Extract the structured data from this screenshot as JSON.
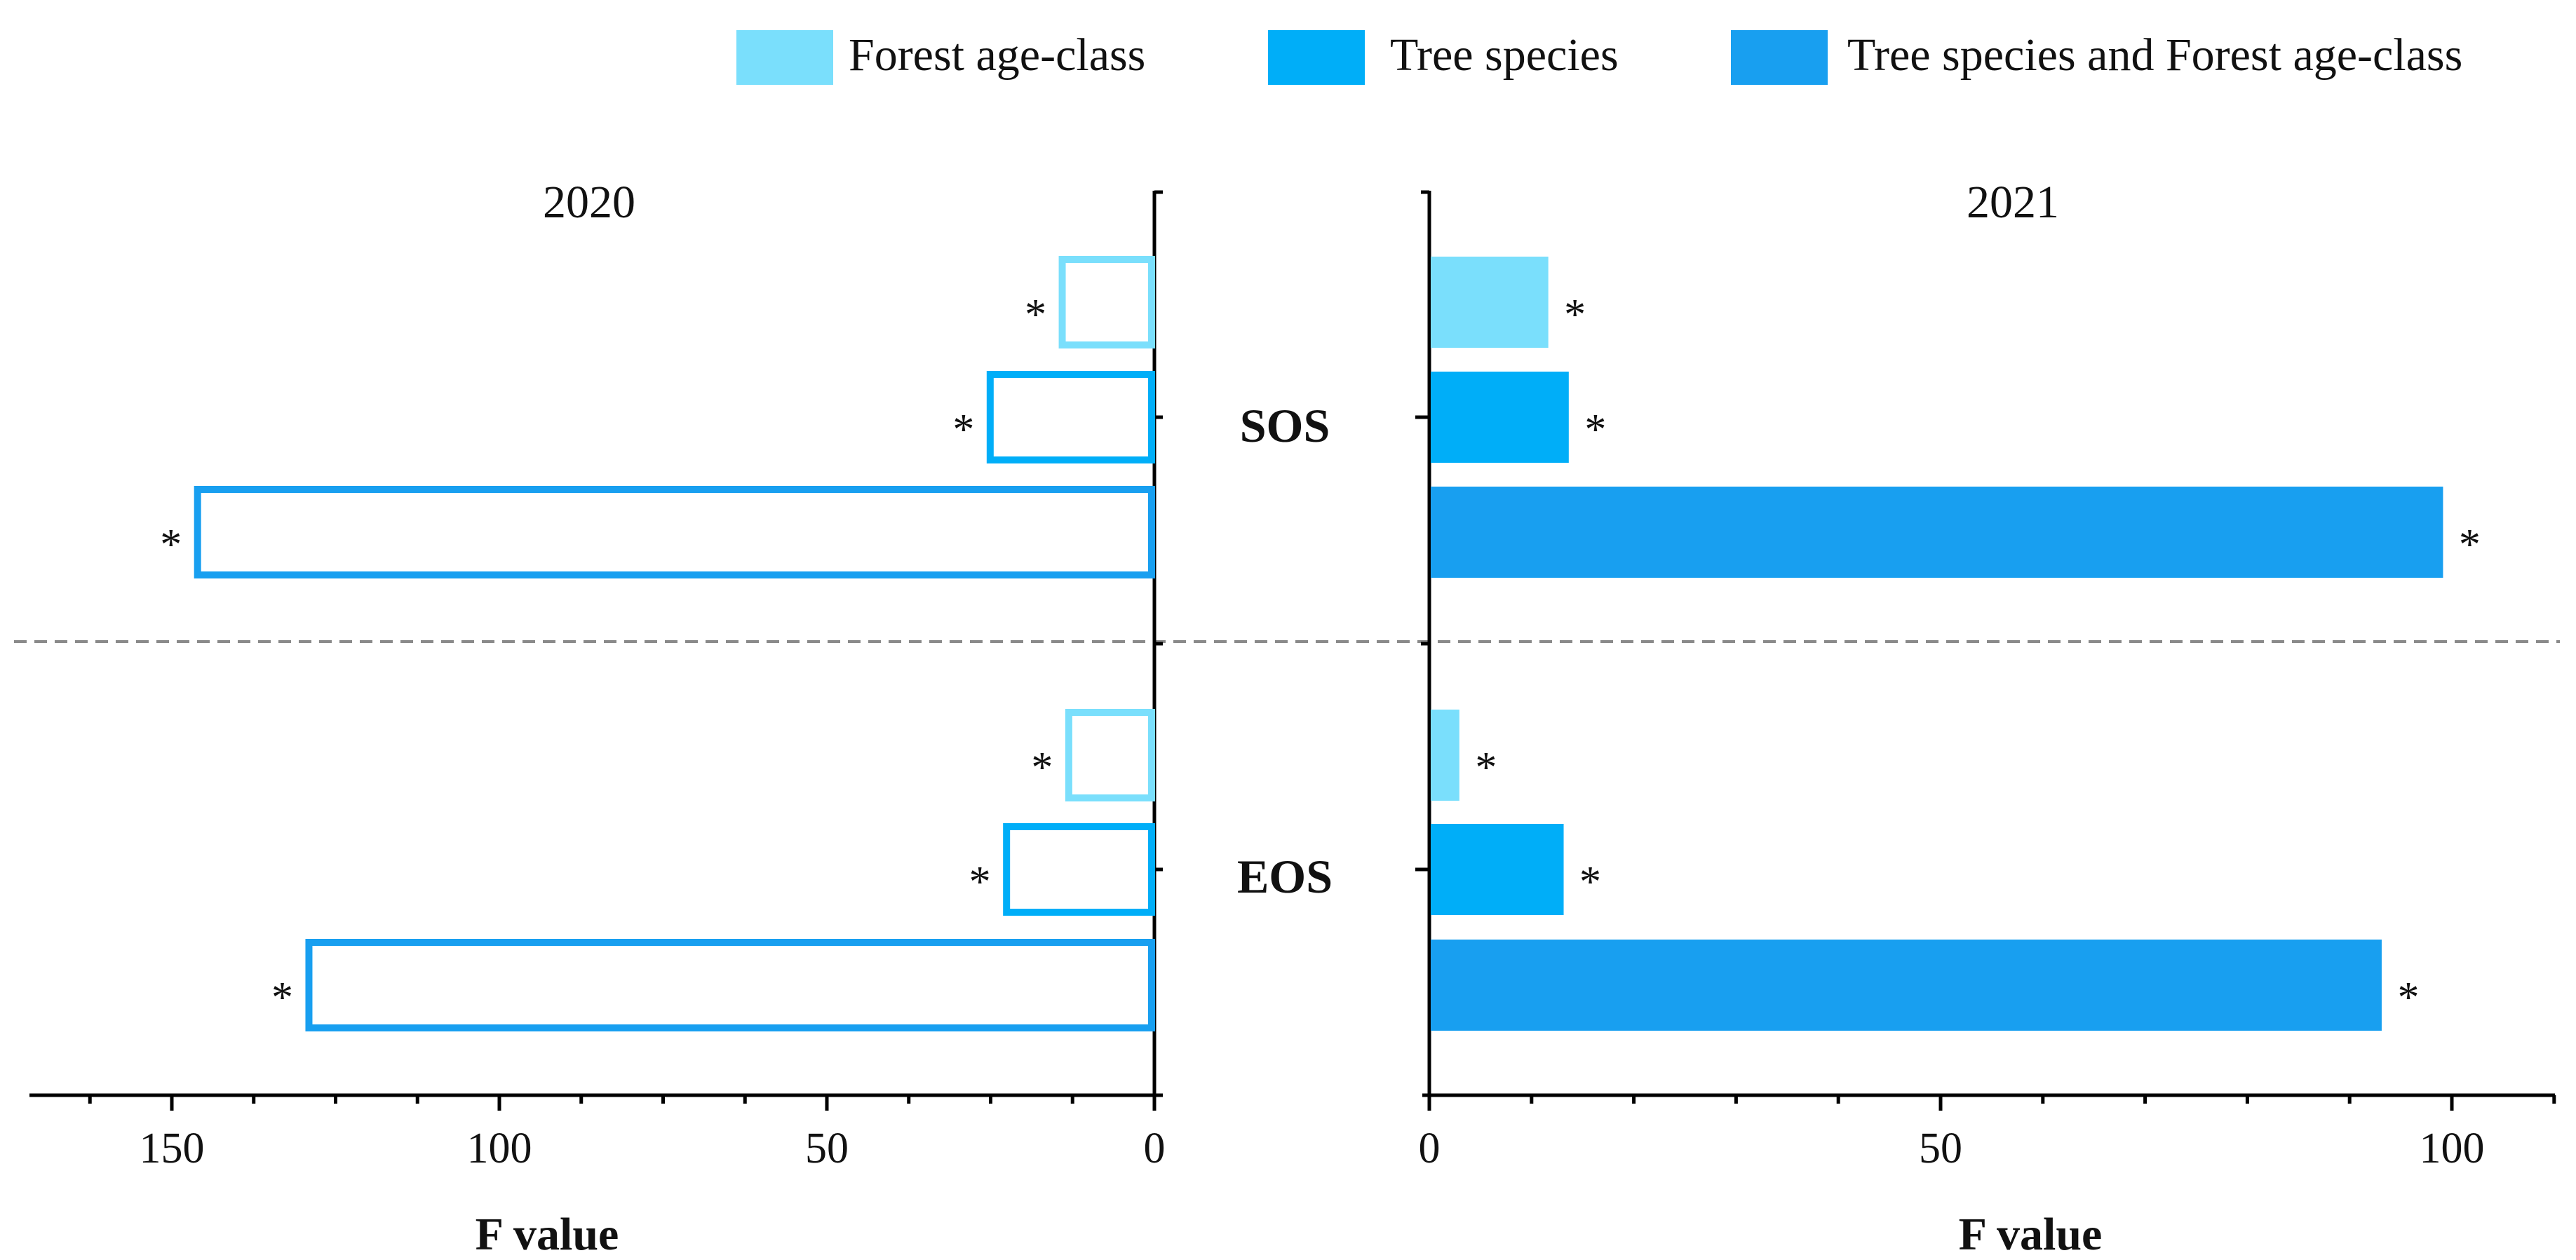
{
  "legend": {
    "items": [
      {
        "label": "Forest age-class",
        "color": "#7ADFFC"
      },
      {
        "label": "Tree species",
        "color": "#00AEF8"
      },
      {
        "label": "Tree species and Forest age-class",
        "color": "#189FF0"
      }
    ]
  },
  "chart_data": [
    {
      "type": "bar",
      "orientation": "horizontal",
      "style": "outline",
      "title": "2020",
      "xlabel": "F value",
      "xlim": [
        0,
        168
      ],
      "x_direction": "reversed",
      "xticks": [
        0,
        50,
        100,
        150
      ],
      "xtick_labels": [
        "0",
        "50",
        "100",
        "150"
      ],
      "categories": [
        "SOS",
        "EOS"
      ],
      "series": [
        {
          "name": "Forest age-class",
          "values": [
            14.5,
            13.5
          ],
          "significant": [
            true,
            true
          ],
          "marker": "*"
        },
        {
          "name": "Tree species",
          "values": [
            25.5,
            23
          ],
          "significant": [
            true,
            true
          ],
          "marker": "*"
        },
        {
          "name": "Tree species and Forest age-class",
          "values": [
            146.5,
            129.5
          ],
          "significant": [
            true,
            true
          ],
          "marker": "*"
        }
      ]
    },
    {
      "type": "bar",
      "orientation": "horizontal",
      "style": "filled",
      "title": "2021",
      "xlabel": "F value",
      "xlim": [
        0,
        110
      ],
      "x_direction": "normal",
      "xticks": [
        0,
        50,
        100
      ],
      "xtick_labels": [
        "0",
        "50",
        "100"
      ],
      "categories": [
        "SOS",
        "EOS"
      ],
      "series": [
        {
          "name": "Forest age-class",
          "values": [
            11.5,
            2.8
          ],
          "significant": [
            true,
            true
          ],
          "marker": "*"
        },
        {
          "name": "Tree species",
          "values": [
            13.5,
            13
          ],
          "significant": [
            true,
            true
          ],
          "marker": "*"
        },
        {
          "name": "Tree species and Forest age-class",
          "values": [
            99,
            93
          ],
          "significant": [
            true,
            true
          ],
          "marker": "*"
        }
      ]
    }
  ]
}
